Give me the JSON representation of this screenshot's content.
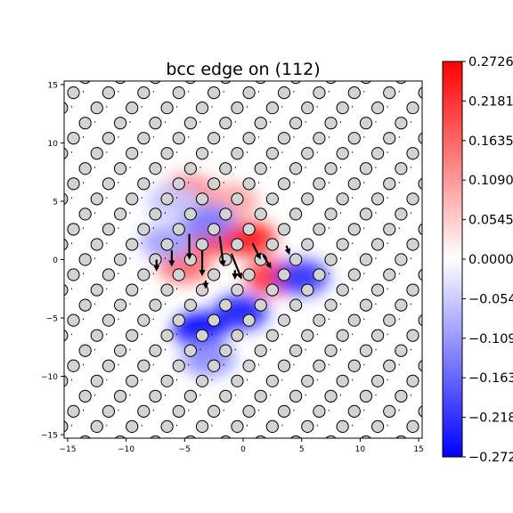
{
  "chart_data": {
    "type": "heatmap",
    "title": "bcc edge on (112)",
    "xlabel": "",
    "ylabel": "",
    "xlim": [
      -15.3,
      15.3
    ],
    "ylim": [
      -15.3,
      15.3
    ],
    "xticks": [
      -15,
      -10,
      -5,
      0,
      5,
      10,
      15
    ],
    "yticks": [
      -15,
      -10,
      -5,
      0,
      5,
      10,
      15
    ],
    "xtick_labels": [
      "−15",
      "−10",
      "−5",
      "0",
      "5",
      "10",
      "15"
    ],
    "ytick_labels": [
      "−15",
      "−10",
      "−5",
      "0",
      "5",
      "10",
      "15"
    ],
    "grid": false,
    "colormap": "bwr",
    "colors": {
      "low": "#0000ff",
      "mid": "#ffffff",
      "high": "#ff0000"
    },
    "colorbar": {
      "vmin": -0.2726,
      "vmax": 0.2726,
      "ticks": [
        0.2726,
        0.2181,
        0.1635,
        0.109,
        0.0545,
        0.0,
        -0.0545,
        -0.109,
        -0.1635,
        -0.2181,
        -0.2726
      ],
      "tick_labels": [
        "0.2726",
        "0.2181",
        "0.1635",
        "0.1090",
        "0.0545",
        "0.0000",
        "−0.0545",
        "−0.1090",
        "−0.1635",
        "−0.2181",
        "−0.2726"
      ]
    },
    "atom_lattice": {
      "row_spacing": 1.3,
      "column_spacing": 3.0,
      "row_shift": 1.0
    },
    "field_blobs": [
      {
        "x": -2.3,
        "y": 2.0,
        "value": 0.27
      },
      {
        "x": 0.5,
        "y": 1.8,
        "value": 0.24
      },
      {
        "x": 2.5,
        "y": -1.5,
        "value": 0.22
      },
      {
        "x": -5.0,
        "y": -0.5,
        "value": 0.16
      },
      {
        "x": -4.7,
        "y": 5.8,
        "value": 0.14
      },
      {
        "x": -1.0,
        "y": 5.0,
        "value": 0.1
      },
      {
        "x": -2.5,
        "y": 3.8,
        "value": 0.08
      },
      {
        "x": -3.7,
        "y": -6.0,
        "value": -0.27
      },
      {
        "x": -0.2,
        "y": -4.5,
        "value": -0.24
      },
      {
        "x": 5.0,
        "y": -1.5,
        "value": -0.22
      },
      {
        "x": -6.5,
        "y": 1.5,
        "value": -0.1
      },
      {
        "x": -3.0,
        "y": 3.3,
        "value": -0.14
      },
      {
        "x": -6.0,
        "y": 5.0,
        "value": -0.06
      },
      {
        "x": -3.0,
        "y": -8.5,
        "value": -0.12
      }
    ],
    "displacement_arrows": [
      {
        "x": -4.6,
        "y": 2.2,
        "dx": 0.0,
        "dy": -2.0
      },
      {
        "x": -2.0,
        "y": 2.0,
        "dx": 0.3,
        "dy": -2.4
      },
      {
        "x": -3.5,
        "y": 0.8,
        "dx": 0.0,
        "dy": -2.0
      },
      {
        "x": -1.0,
        "y": 0.5,
        "dx": 0.8,
        "dy": -2.0
      },
      {
        "x": 0.8,
        "y": 1.4,
        "dx": 0.6,
        "dy": -1.2
      },
      {
        "x": 1.7,
        "y": 0.4,
        "dx": 0.6,
        "dy": -1.0
      },
      {
        "x": -6.1,
        "y": 0.8,
        "dx": 0.0,
        "dy": -1.2
      },
      {
        "x": -7.4,
        "y": 0.0,
        "dx": 0.0,
        "dy": -0.8
      },
      {
        "x": -0.7,
        "y": -0.9,
        "dx": 0.0,
        "dy": -0.6
      },
      {
        "x": 3.7,
        "y": 1.2,
        "dx": 0.2,
        "dy": -0.6
      },
      {
        "x": -3.2,
        "y": -1.8,
        "dx": 0.0,
        "dy": -0.5
      }
    ]
  }
}
